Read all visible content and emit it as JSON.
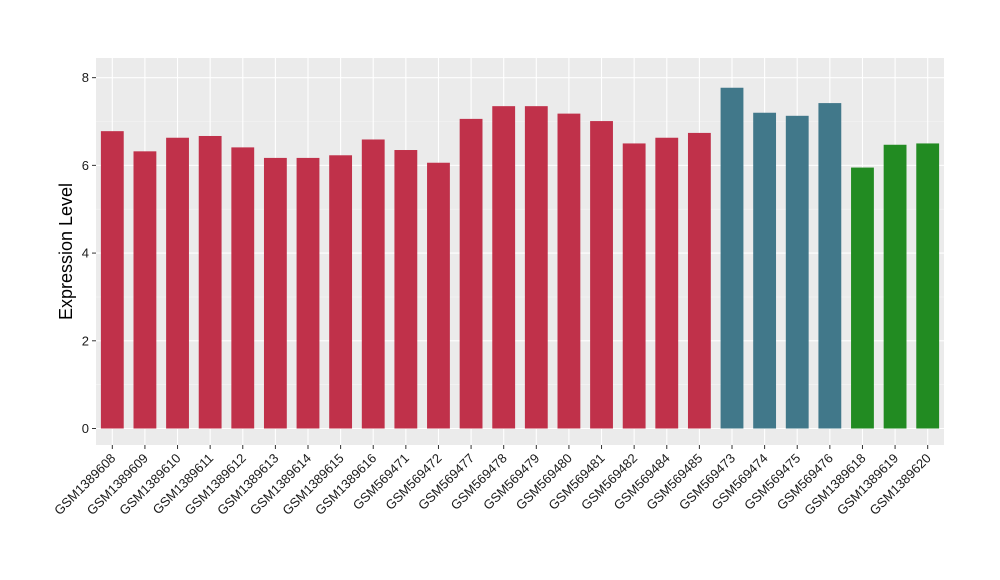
{
  "chart_data": {
    "type": "bar",
    "ylabel": "Expression Level",
    "xlabel": "",
    "ylim": [
      0,
      8
    ],
    "yticks": [
      0,
      2,
      4,
      6,
      8
    ],
    "grid": true,
    "background": "#EBEBEB",
    "categories": [
      "GSM1389608",
      "GSM1389609",
      "GSM1389610",
      "GSM1389611",
      "GSM1389612",
      "GSM1389613",
      "GSM1389614",
      "GSM1389615",
      "GSM1389616",
      "GSM569471",
      "GSM569472",
      "GSM569477",
      "GSM569478",
      "GSM569479",
      "GSM569480",
      "GSM569481",
      "GSM569482",
      "GSM569484",
      "GSM569485",
      "GSM569473",
      "GSM569474",
      "GSM569475",
      "GSM569476",
      "GSM1389618",
      "GSM1389619",
      "GSM1389620"
    ],
    "values": [
      6.78,
      6.32,
      6.63,
      6.67,
      6.41,
      6.17,
      6.17,
      6.23,
      6.59,
      6.35,
      6.06,
      7.06,
      7.35,
      7.35,
      7.18,
      7.01,
      6.5,
      6.63,
      6.74,
      7.77,
      7.2,
      7.13,
      7.42,
      5.95,
      6.47,
      6.5
    ],
    "colors": [
      "#C0314A",
      "#C0314A",
      "#C0314A",
      "#C0314A",
      "#C0314A",
      "#C0314A",
      "#C0314A",
      "#C0314A",
      "#C0314A",
      "#C0314A",
      "#C0314A",
      "#C0314A",
      "#C0314A",
      "#C0314A",
      "#C0314A",
      "#C0314A",
      "#C0314A",
      "#C0314A",
      "#C0314A",
      "#41788A",
      "#41788A",
      "#41788A",
      "#41788A",
      "#228B22",
      "#228B22",
      "#228B22"
    ]
  }
}
